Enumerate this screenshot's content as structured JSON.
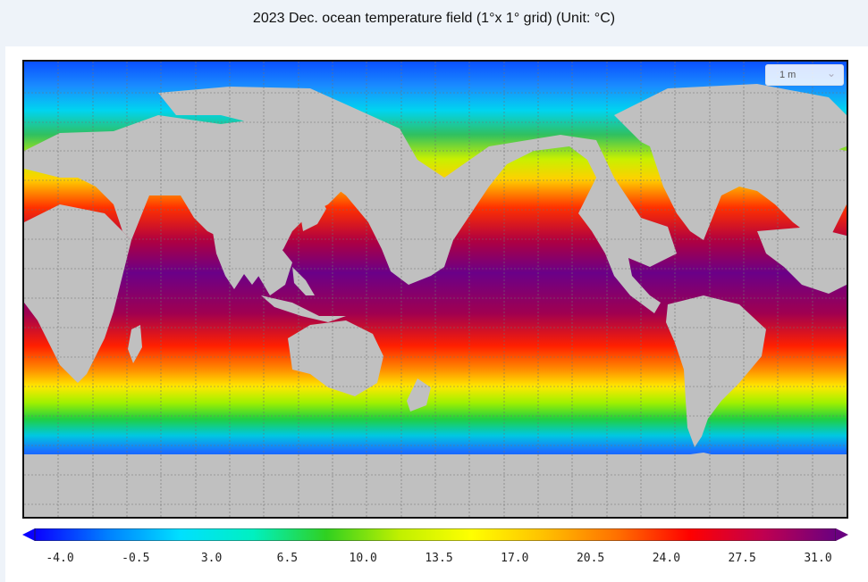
{
  "title": "2023 Dec. ocean temperature field (1°x 1° grid) (Unit: °C)",
  "depth_selector": {
    "value": "1 m"
  },
  "colorbar": {
    "ticks": [
      "-4.0",
      "-0.5",
      "3.0",
      "6.5",
      "10.0",
      "13.5",
      "17.0",
      "20.5",
      "24.0",
      "27.5",
      "31.0"
    ],
    "range": [
      -4.0,
      31.0
    ],
    "colors": [
      "#0a00ff",
      "#0080ff",
      "#00e0ff",
      "#00f0c0",
      "#30d020",
      "#c0f000",
      "#ffff00",
      "#ffc000",
      "#ff7000",
      "#ff0000",
      "#c00050",
      "#6a0080"
    ]
  },
  "colors": {
    "land": "#c0c0c0",
    "frame": "#111111",
    "background": "#eef3f9"
  }
}
